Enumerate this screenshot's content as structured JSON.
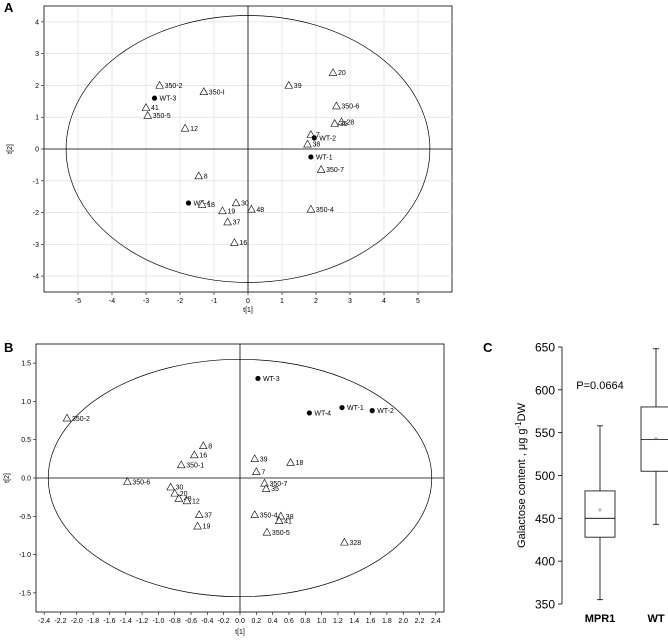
{
  "panels": {
    "A": {
      "letter": "A"
    },
    "B": {
      "letter": "B"
    },
    "C": {
      "letter": "C"
    }
  },
  "chart_data": [
    {
      "id": "A",
      "type": "scatter",
      "xlabel": "t[1]",
      "ylabel": "t[2]",
      "xlim": [
        -6,
        6
      ],
      "ylim": [
        -4.5,
        4.5
      ],
      "xticks": [
        -5,
        -4,
        -3,
        -2,
        -1,
        0,
        1,
        2,
        3,
        4,
        5
      ],
      "yticks": [
        4,
        3,
        2,
        1,
        0,
        -1,
        -2,
        -3,
        -4
      ],
      "ellipse": {
        "rx": 5.35,
        "ry": 4.2
      },
      "grid": true,
      "points": [
        {
          "label": "350-2",
          "x": -2.6,
          "y": 2.0,
          "marker": "triangle"
        },
        {
          "label": "350-I",
          "x": -1.3,
          "y": 1.8,
          "marker": "triangle"
        },
        {
          "label": "WT-3",
          "x": -2.75,
          "y": 1.6,
          "marker": "dot"
        },
        {
          "label": "41",
          "x": -3.0,
          "y": 1.3,
          "marker": "triangle"
        },
        {
          "label": "350-5",
          "x": -2.95,
          "y": 1.05,
          "marker": "triangle"
        },
        {
          "label": "12",
          "x": -1.85,
          "y": 0.65,
          "marker": "triangle"
        },
        {
          "label": "39",
          "x": 1.2,
          "y": 2.0,
          "marker": "triangle"
        },
        {
          "label": "20",
          "x": 2.5,
          "y": 2.4,
          "marker": "triangle"
        },
        {
          "label": "350-6",
          "x": 2.6,
          "y": 1.35,
          "marker": "triangle"
        },
        {
          "label": "28",
          "x": 2.75,
          "y": 0.85,
          "marker": "triangle"
        },
        {
          "label": "35",
          "x": 2.55,
          "y": 0.8,
          "marker": "triangle"
        },
        {
          "label": "7",
          "x": 1.85,
          "y": 0.45,
          "marker": "triangle"
        },
        {
          "label": "WT-2",
          "x": 1.95,
          "y": 0.35,
          "marker": "dot"
        },
        {
          "label": "38",
          "x": 1.75,
          "y": 0.15,
          "marker": "triangle"
        },
        {
          "label": "WT-1",
          "x": 1.85,
          "y": -0.25,
          "marker": "dot"
        },
        {
          "label": "350-7",
          "x": 2.15,
          "y": -0.65,
          "marker": "triangle"
        },
        {
          "label": "8",
          "x": -1.45,
          "y": -0.85,
          "marker": "triangle"
        },
        {
          "label": "WT-4",
          "x": -1.75,
          "y": -1.7,
          "marker": "dot"
        },
        {
          "label": "18",
          "x": -1.35,
          "y": -1.75,
          "marker": "triangle"
        },
        {
          "label": "30",
          "x": -0.35,
          "y": -1.7,
          "marker": "triangle"
        },
        {
          "label": "48",
          "x": 0.1,
          "y": -1.9,
          "marker": "triangle"
        },
        {
          "label": "19",
          "x": -0.75,
          "y": -1.95,
          "marker": "triangle"
        },
        {
          "label": "350-4",
          "x": 1.85,
          "y": -1.9,
          "marker": "triangle"
        },
        {
          "label": "37",
          "x": -0.6,
          "y": -2.3,
          "marker": "triangle"
        },
        {
          "label": "16",
          "x": -0.4,
          "y": -2.95,
          "marker": "triangle"
        }
      ]
    },
    {
      "id": "B",
      "type": "scatter",
      "xlabel": "t[1]",
      "ylabel": "t[2]",
      "xlim": [
        -2.5,
        2.5
      ],
      "ylim": [
        -1.75,
        1.75
      ],
      "xticks": [
        -2.4,
        -2.2,
        -2.0,
        -1.8,
        -1.6,
        -1.4,
        -1.2,
        -1.0,
        -0.8,
        -0.6,
        -0.4,
        -0.2,
        0.0,
        0.2,
        0.4,
        0.6,
        0.8,
        1.0,
        1.2,
        1.4,
        1.6,
        1.8,
        2.0,
        2.2,
        2.4
      ],
      "xtick_labels": [
        "-2.4",
        "-2.2",
        "-2.0",
        "-1.8",
        "-1.6",
        "-1.4",
        "-1.2",
        "-1.0",
        "-0.8",
        "-0.6",
        "-0.4",
        "-0.2",
        "0.0",
        "0.2",
        "0.4",
        "0.6",
        "0.8",
        "1.0",
        "1.2",
        "1.4",
        "1.6",
        "1.8",
        "2.0",
        "2.2",
        "2.4"
      ],
      "yticks": [
        1.5,
        1.0,
        0.5,
        0.0,
        -0.5,
        -1.0,
        -1.5
      ],
      "ytick_labels": [
        "1.5",
        "1.0",
        "0.5",
        "0.0",
        "-0.5",
        "-1.0",
        "-1.5"
      ],
      "ellipse": {
        "rx": 2.35,
        "ry": 1.55
      },
      "grid": false,
      "points": [
        {
          "label": "WT-3",
          "x": 0.22,
          "y": 1.3,
          "marker": "dot"
        },
        {
          "label": "WT-1",
          "x": 1.25,
          "y": 0.92,
          "marker": "dot"
        },
        {
          "label": "WT-2",
          "x": 1.62,
          "y": 0.88,
          "marker": "dot"
        },
        {
          "label": "WT-4",
          "x": 0.85,
          "y": 0.85,
          "marker": "dot"
        },
        {
          "label": "350-2",
          "x": -2.12,
          "y": 0.78,
          "marker": "triangle"
        },
        {
          "label": "8",
          "x": -0.45,
          "y": 0.42,
          "marker": "triangle"
        },
        {
          "label": "16",
          "x": -0.56,
          "y": 0.3,
          "marker": "triangle"
        },
        {
          "label": "39",
          "x": 0.18,
          "y": 0.25,
          "marker": "triangle"
        },
        {
          "label": "18",
          "x": 0.62,
          "y": 0.2,
          "marker": "triangle"
        },
        {
          "label": "350-1",
          "x": -0.72,
          "y": 0.17,
          "marker": "triangle"
        },
        {
          "label": "7",
          "x": 0.2,
          "y": 0.08,
          "marker": "triangle"
        },
        {
          "label": "350-6",
          "x": -1.38,
          "y": -0.05,
          "marker": "triangle"
        },
        {
          "label": "350-7",
          "x": 0.3,
          "y": -0.07,
          "marker": "triangle"
        },
        {
          "label": "35",
          "x": 0.32,
          "y": -0.14,
          "marker": "triangle"
        },
        {
          "label": "30",
          "x": -0.85,
          "y": -0.12,
          "marker": "triangle"
        },
        {
          "label": "20",
          "x": -0.8,
          "y": -0.2,
          "marker": "triangle"
        },
        {
          "label": "48",
          "x": -0.75,
          "y": -0.27,
          "marker": "triangle"
        },
        {
          "label": "12",
          "x": -0.65,
          "y": -0.3,
          "marker": "triangle"
        },
        {
          "label": "37",
          "x": -0.5,
          "y": -0.48,
          "marker": "triangle"
        },
        {
          "label": "350-4",
          "x": 0.18,
          "y": -0.48,
          "marker": "triangle"
        },
        {
          "label": "38",
          "x": 0.5,
          "y": -0.5,
          "marker": "triangle"
        },
        {
          "label": "41",
          "x": 0.48,
          "y": -0.56,
          "marker": "triangle"
        },
        {
          "label": "19",
          "x": -0.52,
          "y": -0.63,
          "marker": "triangle"
        },
        {
          "label": "350-5",
          "x": 0.33,
          "y": -0.71,
          "marker": "triangle"
        },
        {
          "label": "328",
          "x": 1.28,
          "y": -0.84,
          "marker": "triangle"
        }
      ]
    },
    {
      "id": "C",
      "type": "box",
      "ylabel_main": "Galactose content , μg g",
      "ylabel_sup": "-1",
      "ylabel_end": "DW",
      "ylim": [
        350,
        650
      ],
      "yticks": [
        350,
        400,
        450,
        500,
        550,
        600,
        650
      ],
      "annotation": "P=0.0664",
      "groups": [
        {
          "name": "MPR1",
          "min": 355,
          "q1": 428,
          "median": 450,
          "q3": 482,
          "max": 558,
          "mean": 460
        },
        {
          "name": "WT",
          "min": 443,
          "q1": 505,
          "median": 542,
          "q3": 580,
          "max": 648,
          "mean": 543
        }
      ]
    }
  ]
}
